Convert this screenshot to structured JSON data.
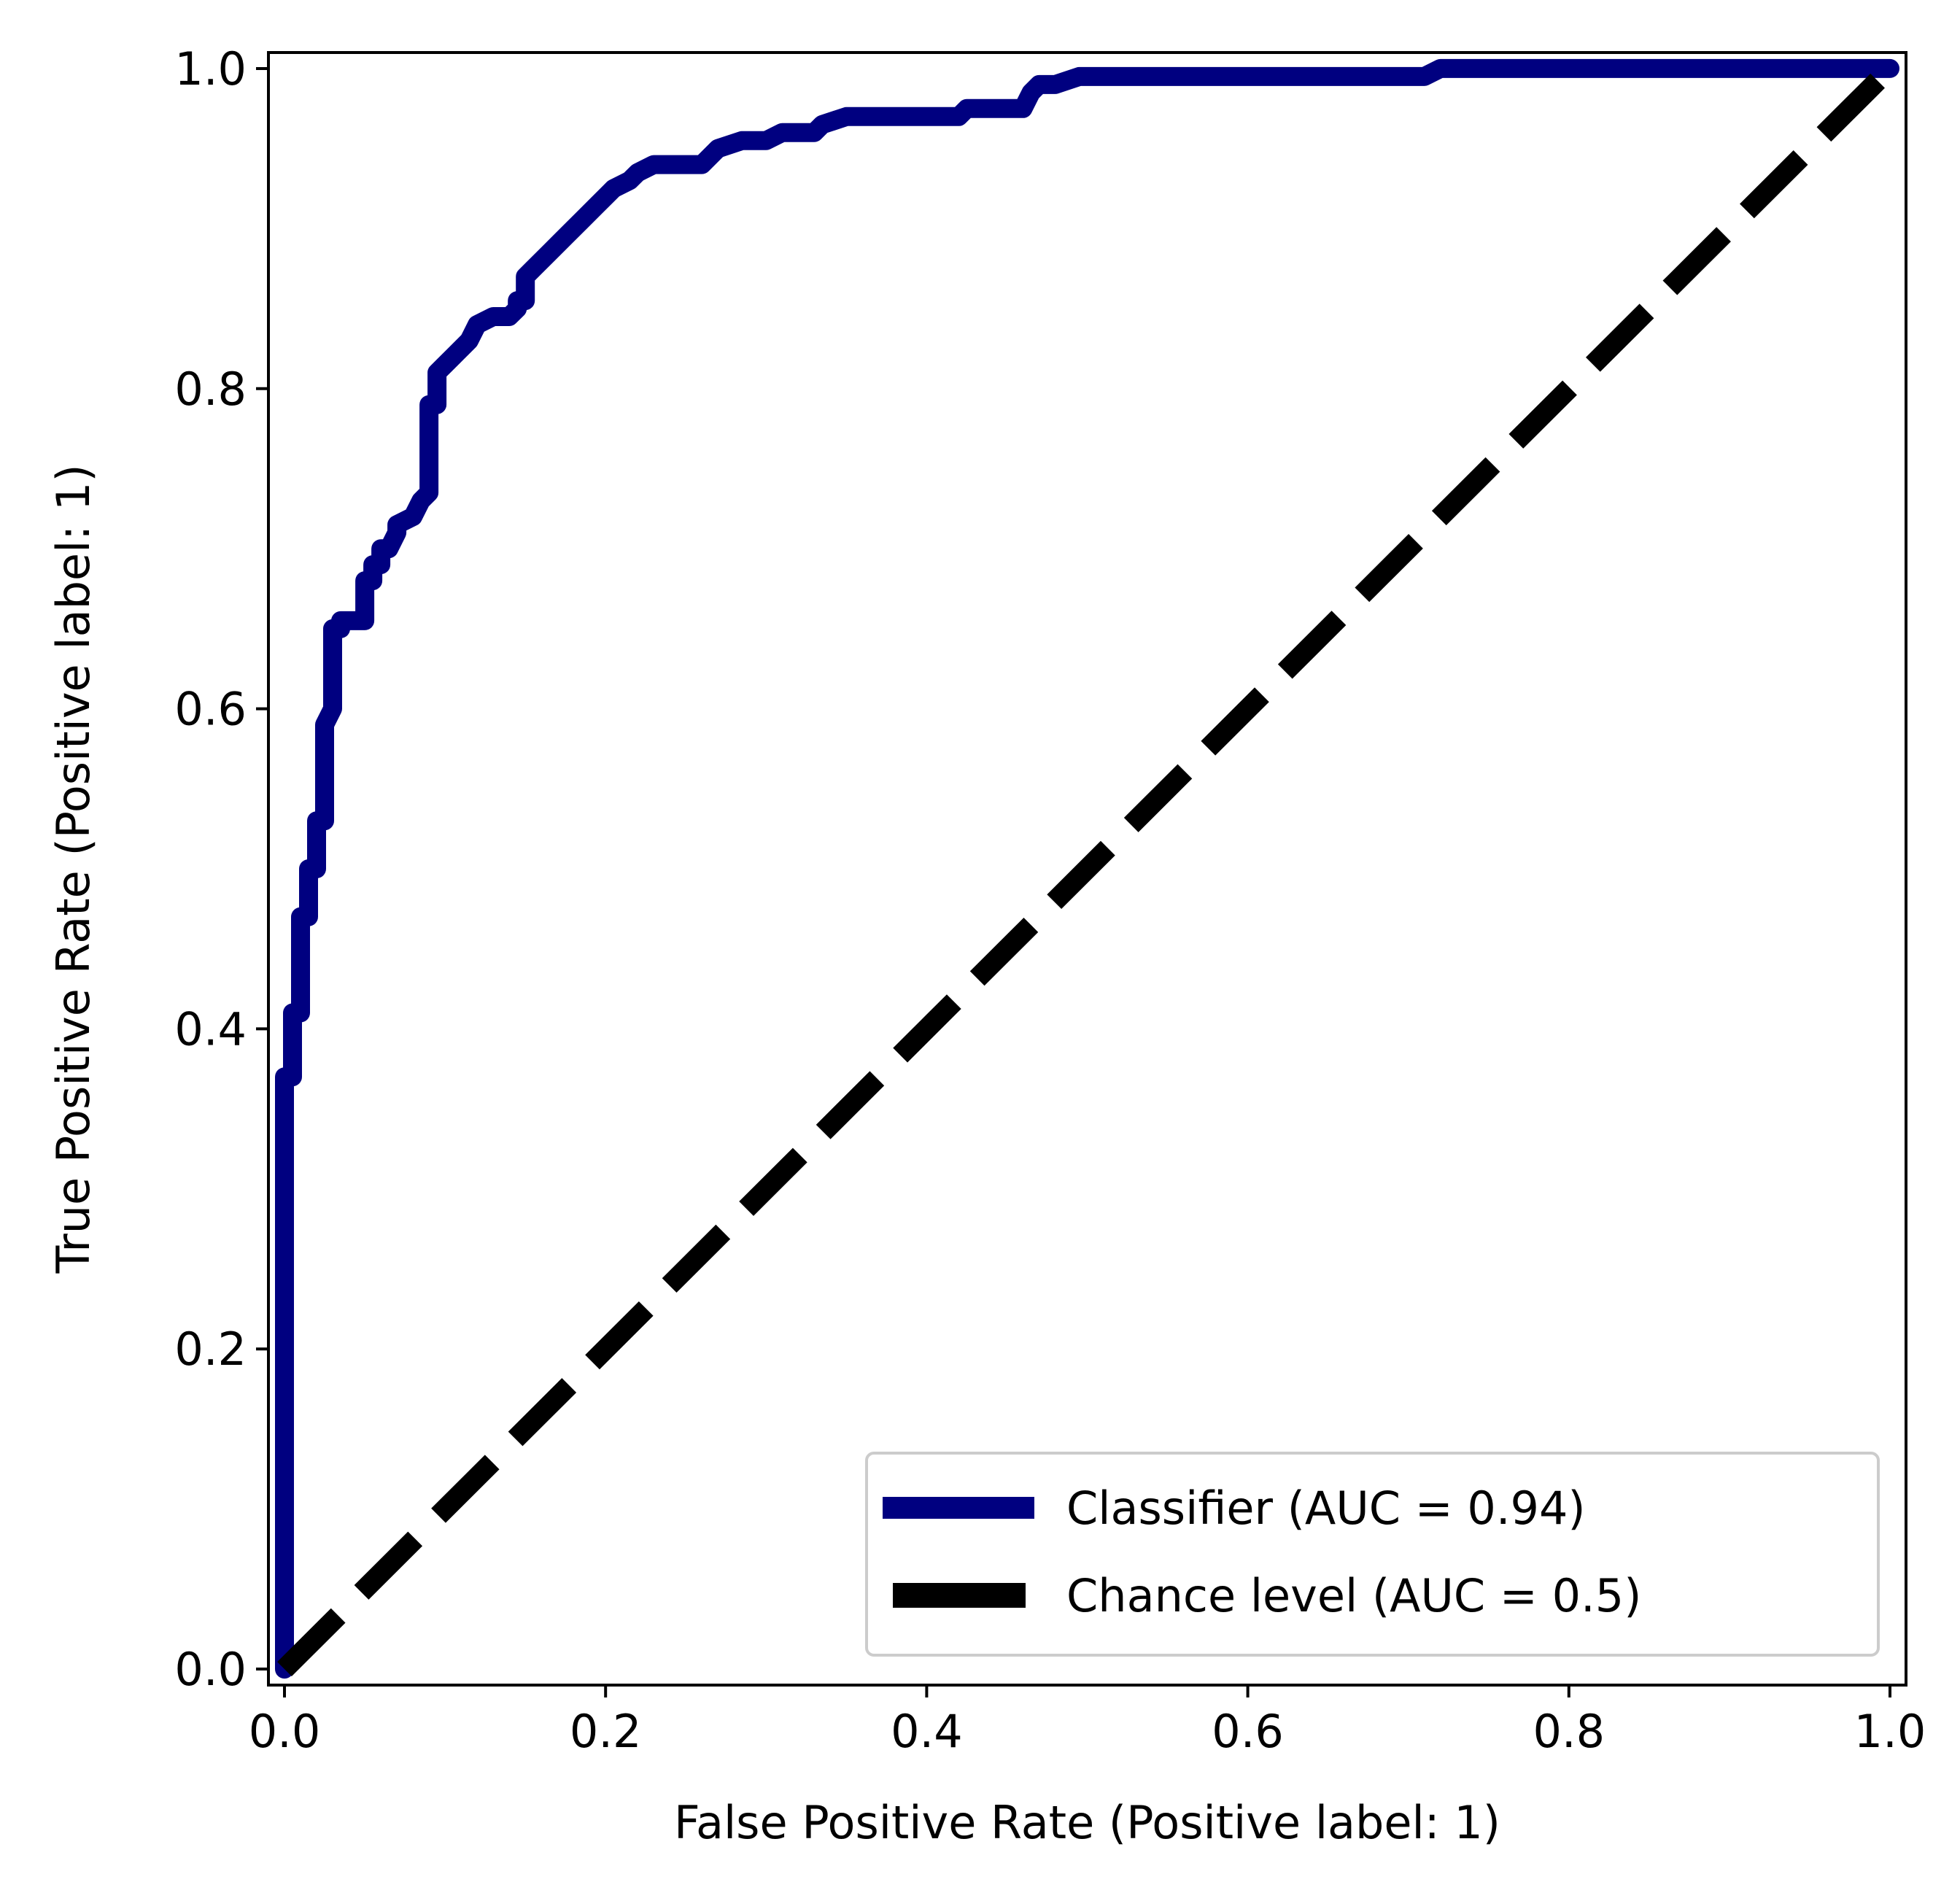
{
  "chart_data": {
    "type": "line",
    "title": "",
    "xlabel": "False Positive Rate (Positive label: 1)",
    "ylabel": "True Positive Rate (Positive label: 1)",
    "xlim": [
      -0.01,
      1.01
    ],
    "ylim": [
      -0.01,
      1.01
    ],
    "xticks": [
      0.0,
      0.2,
      0.4,
      0.6,
      0.8,
      1.0
    ],
    "yticks": [
      0.0,
      0.2,
      0.4,
      0.6,
      0.8,
      1.0
    ],
    "xtick_labels": [
      "0.0",
      "0.2",
      "0.4",
      "0.6",
      "0.8",
      "1.0"
    ],
    "ytick_labels": [
      "0.0",
      "0.2",
      "0.4",
      "0.6",
      "0.8",
      "1.0"
    ],
    "grid": false,
    "legend_position": "lower-right",
    "series": [
      {
        "name": "Classifier (AUC = 0.94)",
        "color": "#000080",
        "style": "solid",
        "x": [
          0.0,
          0.0,
          0.005,
          0.005,
          0.01,
          0.01,
          0.015,
          0.015,
          0.02,
          0.02,
          0.025,
          0.025,
          0.03,
          0.03,
          0.035,
          0.035,
          0.04,
          0.045,
          0.05,
          0.05,
          0.055,
          0.055,
          0.06,
          0.06,
          0.065,
          0.07,
          0.07,
          0.08,
          0.085,
          0.09,
          0.09,
          0.095,
          0.095,
          0.1,
          0.105,
          0.11,
          0.115,
          0.12,
          0.13,
          0.14,
          0.145,
          0.145,
          0.15,
          0.15,
          0.155,
          0.165,
          0.17,
          0.17,
          0.175,
          0.18,
          0.185,
          0.19,
          0.195,
          0.2,
          0.205,
          0.215,
          0.22,
          0.23,
          0.24,
          0.25,
          0.26,
          0.265,
          0.27,
          0.285,
          0.3,
          0.31,
          0.33,
          0.335,
          0.35,
          0.36,
          0.38,
          0.42,
          0.425,
          0.44,
          0.46,
          0.465,
          0.47,
          0.48,
          0.495,
          0.5,
          0.52,
          0.55,
          0.6,
          0.65,
          0.7,
          0.71,
          0.72,
          0.8,
          0.9,
          1.0
        ],
        "y": [
          0.0,
          0.37,
          0.37,
          0.41,
          0.41,
          0.47,
          0.47,
          0.5,
          0.5,
          0.53,
          0.53,
          0.59,
          0.6,
          0.65,
          0.65,
          0.655,
          0.655,
          0.655,
          0.655,
          0.68,
          0.68,
          0.69,
          0.69,
          0.7,
          0.7,
          0.71,
          0.715,
          0.72,
          0.73,
          0.735,
          0.79,
          0.79,
          0.81,
          0.815,
          0.82,
          0.825,
          0.83,
          0.84,
          0.845,
          0.845,
          0.85,
          0.855,
          0.855,
          0.87,
          0.875,
          0.885,
          0.89,
          0.89,
          0.895,
          0.9,
          0.905,
          0.91,
          0.915,
          0.92,
          0.925,
          0.93,
          0.935,
          0.94,
          0.94,
          0.94,
          0.94,
          0.945,
          0.95,
          0.955,
          0.955,
          0.96,
          0.96,
          0.965,
          0.97,
          0.97,
          0.97,
          0.97,
          0.975,
          0.975,
          0.975,
          0.985,
          0.99,
          0.99,
          0.995,
          0.995,
          0.995,
          0.995,
          0.995,
          0.995,
          0.995,
          0.995,
          1.0,
          1.0,
          1.0,
          1.0
        ]
      },
      {
        "name": "Chance level (AUC = 0.5)",
        "color": "#000000",
        "style": "dashed",
        "x": [
          0.0,
          1.0
        ],
        "y": [
          0.0,
          1.0
        ]
      }
    ]
  }
}
